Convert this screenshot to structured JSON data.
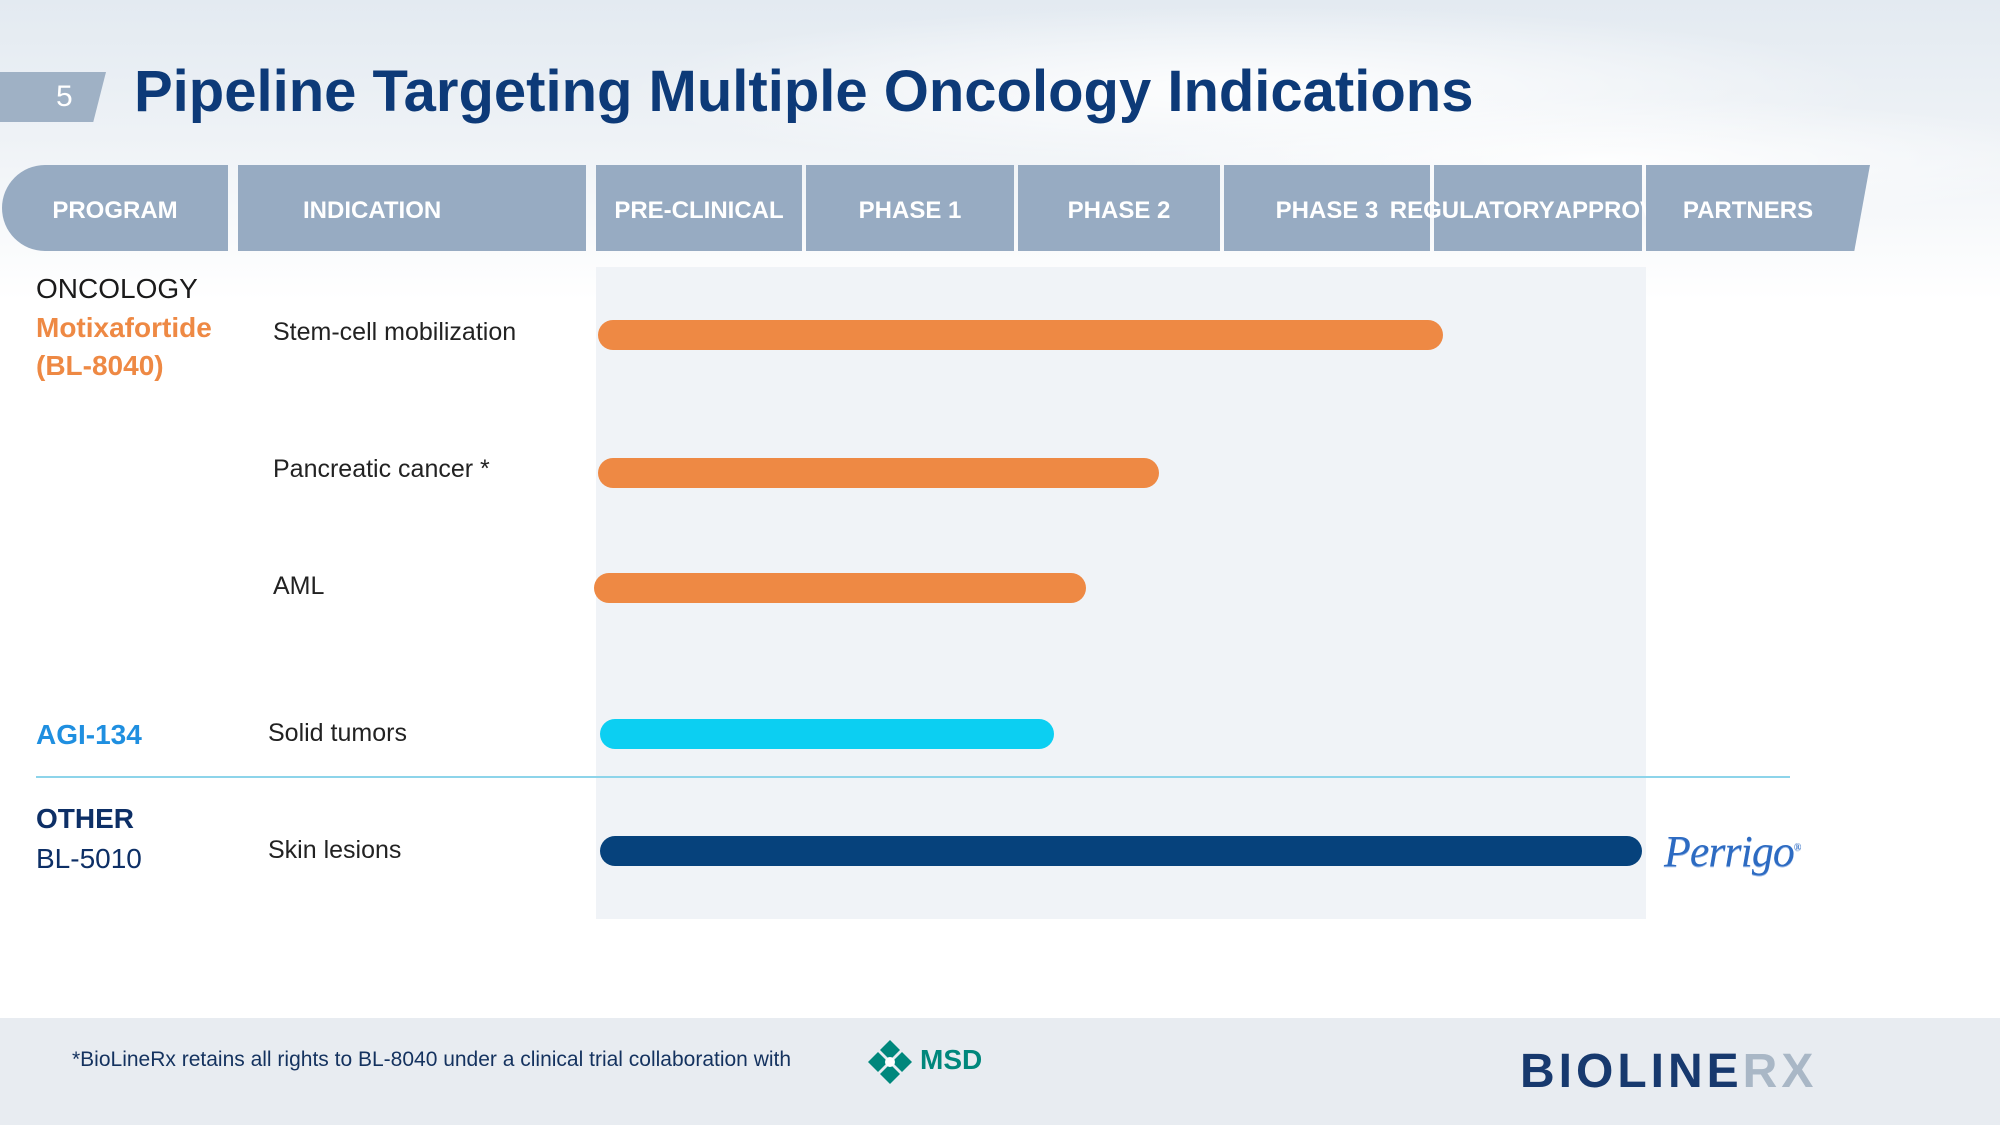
{
  "slide_number": "5",
  "title": "Pipeline Targeting Multiple Oncology Indications",
  "headers": {
    "program": "PROGRAM",
    "indication": "INDICATION",
    "preclinical": "PRE-CLINICAL",
    "phase1": "PHASE 1",
    "phase2": "PHASE 2",
    "phase3": "PHASE 3",
    "regulatory_line1": "REGULATORY",
    "regulatory_line2": "APPROVAL",
    "partners": "PARTNERS"
  },
  "programs": {
    "oncology_group": "ONCOLOGY",
    "motixafortide_line1": "Motixafortide",
    "motixafortide_line2": "(BL-8040)",
    "agi134": "AGI-134",
    "other_group": "OTHER",
    "bl5010": "BL-5010"
  },
  "indications": {
    "stem_cell": "Stem-cell mobilization",
    "pancreatic": "Pancreatic cancer *",
    "aml": "AML",
    "solid_tumors": "Solid tumors",
    "skin_lesions": "Skin lesions"
  },
  "partner_logo": "Perrigo",
  "footnote": "*BioLineRx retains all rights to BL-8040 under a clinical trial collaboration with",
  "msd_logo_text": "MSD",
  "company_logo_part1": "BIOLINE",
  "company_logo_part2": "RX",
  "colors": {
    "motixafortide": "#ee8944",
    "agi134": "#0ccff2",
    "bl5010": "#06427c",
    "header": "#97abc2",
    "title": "#0d3a78"
  },
  "chart_data": {
    "type": "bar",
    "orientation": "horizontal",
    "stages": [
      "PRE-CLINICAL",
      "PHASE 1",
      "PHASE 2",
      "PHASE 3",
      "REGULATORY APPROVAL"
    ],
    "categories": [
      "Stem-cell mobilization",
      "Pancreatic cancer *",
      "AML",
      "Solid tumors",
      "Skin lesions"
    ],
    "values": [
      4.05,
      2.7,
      2.35,
      2.2,
      5.0
    ],
    "xlim": [
      0,
      5
    ]
  }
}
